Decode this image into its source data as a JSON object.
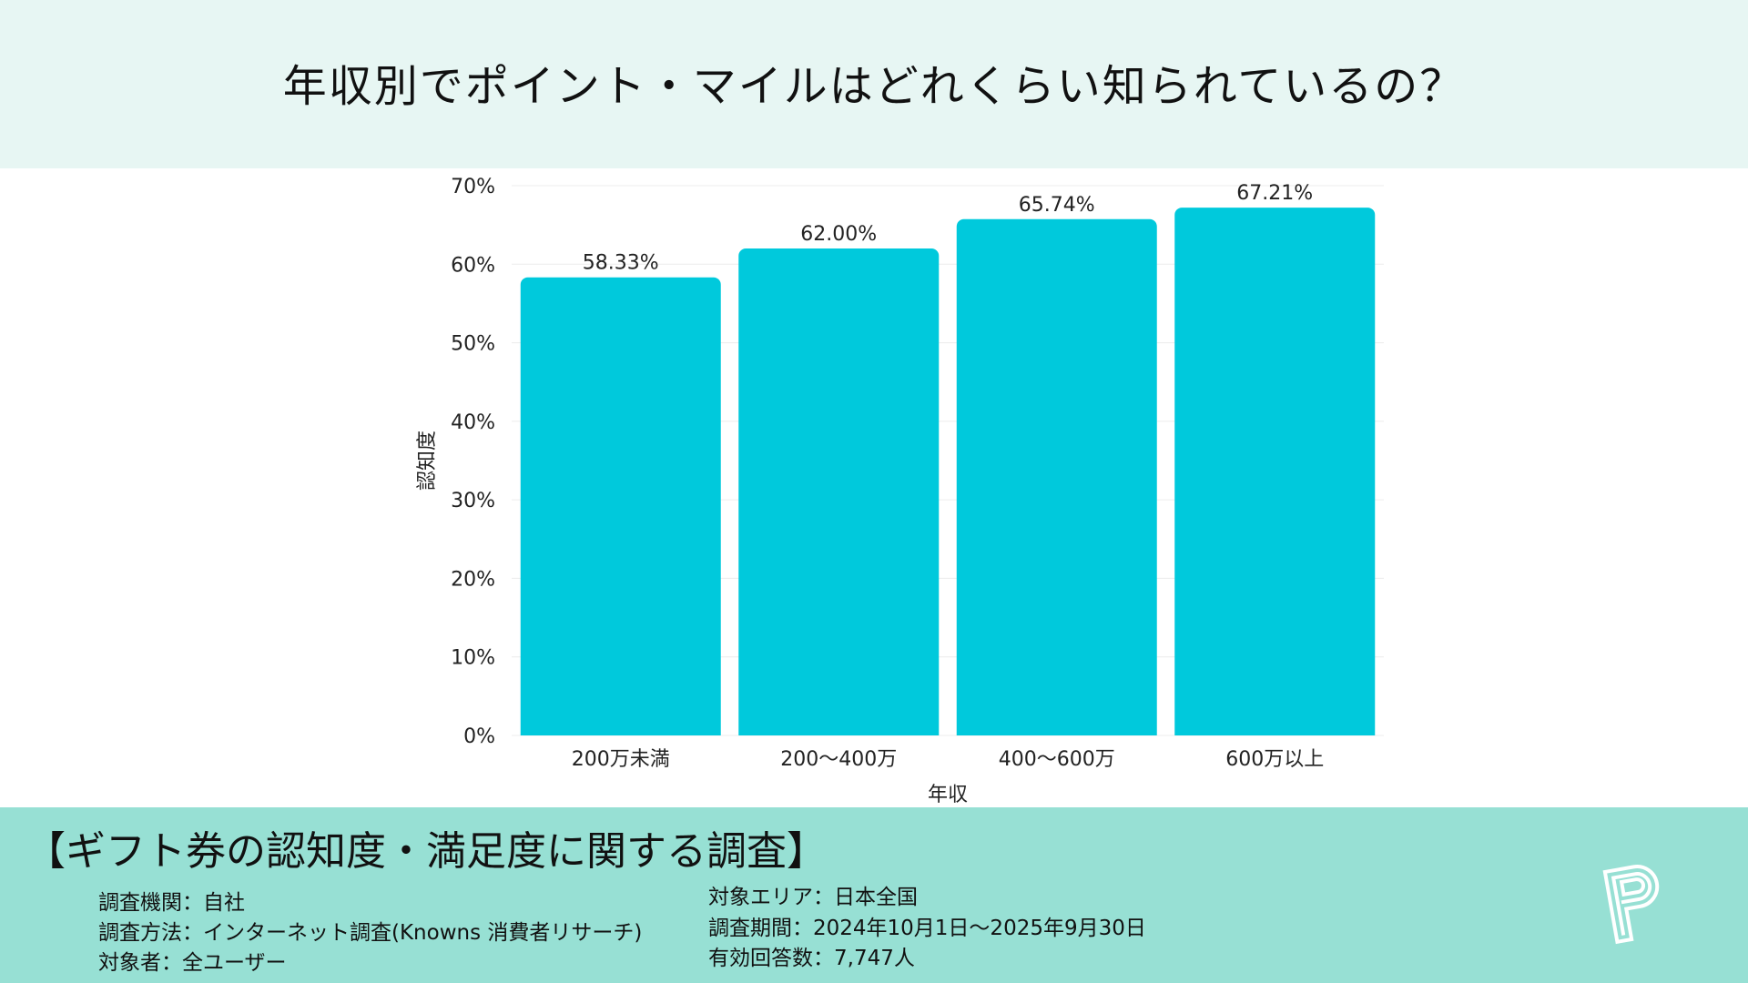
{
  "header": {
    "title": "年収別でポイント・マイルはどれくらい知られているの？"
  },
  "chart_data": {
    "type": "bar",
    "categories": [
      "200万未満",
      "200〜400万",
      "400〜600万",
      "600万以上"
    ],
    "values": [
      58.33,
      62.0,
      65.74,
      67.21
    ],
    "data_labels": [
      "58.33%",
      "62.00%",
      "65.74%",
      "67.21%"
    ],
    "xlabel": "年収",
    "ylabel": "認知度",
    "ylim": [
      0,
      70
    ],
    "yticks": [
      "0%",
      "10%",
      "20%",
      "30%",
      "40%",
      "50%",
      "60%",
      "70%"
    ],
    "grid": true,
    "bar_color": "#00c9dc"
  },
  "footer": {
    "survey_title": "【ギフト券の認知度・満足度に関する調査】",
    "left": [
      "調査機関：自社",
      "調査方法：インターネット調査(Knowns 消費者リサーチ)",
      "対象者：全ユーザー"
    ],
    "right": [
      "対象エリア：日本全国",
      "調査期間：2024年10月1日〜2025年9月30日",
      "有効回答数：7,747人"
    ]
  }
}
